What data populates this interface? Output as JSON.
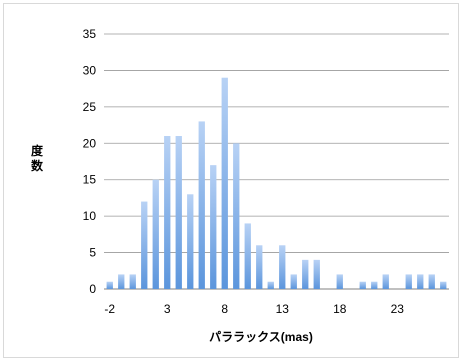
{
  "chart_data": {
    "type": "bar",
    "title": "",
    "xlabel": "パララックス(mas)",
    "ylabel": "度数",
    "ylim": [
      0,
      35
    ],
    "yticks": [
      0,
      5,
      10,
      15,
      20,
      25,
      30,
      35
    ],
    "xtick_labels": [
      "-2",
      "3",
      "8",
      "13",
      "18",
      "23"
    ],
    "x": [
      -2,
      -1,
      0,
      1,
      2,
      3,
      4,
      5,
      6,
      7,
      8,
      9,
      10,
      11,
      12,
      13,
      14,
      15,
      16,
      17,
      18,
      19,
      20,
      21,
      22,
      23,
      24,
      25,
      26,
      27
    ],
    "values": [
      1,
      2,
      2,
      12,
      15,
      21,
      21,
      13,
      23,
      17,
      29,
      20,
      9,
      6,
      1,
      6,
      2,
      4,
      4,
      0,
      2,
      0,
      1,
      1,
      2,
      0,
      2,
      2,
      2,
      1
    ],
    "grid": true,
    "legend": "none",
    "colors": {
      "bar_top": "#b8d2f5",
      "bar_bottom": "#5b95dc",
      "grid": "#9a9a9a"
    }
  }
}
